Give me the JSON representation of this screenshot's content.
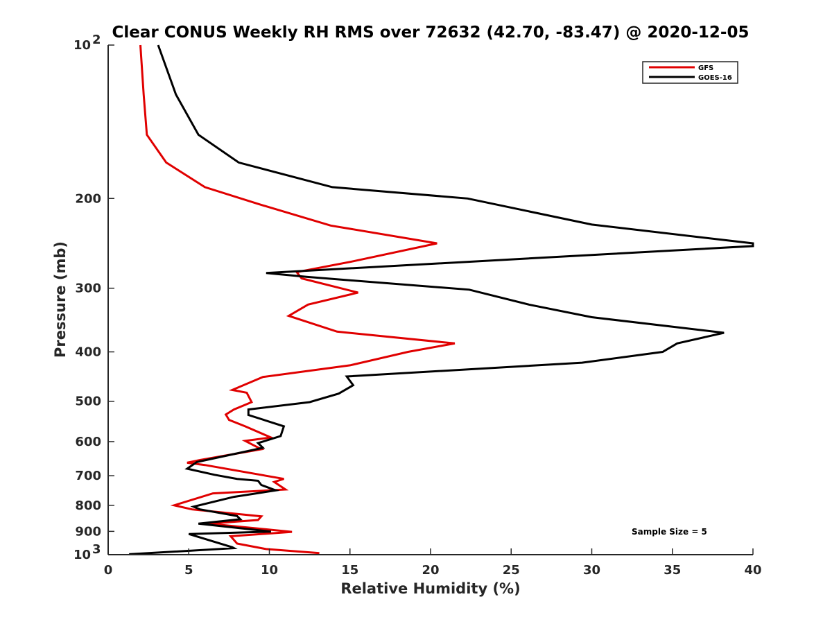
{
  "chart_data": {
    "type": "line",
    "title": "Clear CONUS Weekly RH RMS over 72632 (42.70, -83.47) @ 2020-12-05",
    "xlabel": "Relative Humidity (%)",
    "ylabel": "Pressure (mb)",
    "xlim": [
      0,
      40
    ],
    "ylim": [
      100,
      1000
    ],
    "yscale": "log",
    "y_reversed": true,
    "xticks": [
      "0",
      "5",
      "10",
      "15",
      "20",
      "25",
      "30",
      "35",
      "40"
    ],
    "xtick_values": [
      0,
      5,
      10,
      15,
      20,
      25,
      30,
      35,
      40
    ],
    "yticks": [
      {
        "value": 100,
        "label": "10",
        "sup": "2"
      },
      {
        "value": 200,
        "label": "200",
        "sup": ""
      },
      {
        "value": 300,
        "label": "300",
        "sup": ""
      },
      {
        "value": 400,
        "label": "400",
        "sup": ""
      },
      {
        "value": 500,
        "label": "500",
        "sup": ""
      },
      {
        "value": 600,
        "label": "600",
        "sup": ""
      },
      {
        "value": 700,
        "label": "700",
        "sup": ""
      },
      {
        "value": 800,
        "label": "800",
        "sup": ""
      },
      {
        "value": 900,
        "label": "900",
        "sup": ""
      },
      {
        "value": 1000,
        "label": "10",
        "sup": "3"
      }
    ],
    "legend_position": "top-right",
    "grid": false,
    "annotation": "Sample Size = 5",
    "series": [
      {
        "name": "GFS",
        "color": "#e00000",
        "x": [
          2.0,
          2.2,
          2.4,
          3.6,
          6.0,
          9.3,
          13.8,
          20.4,
          15.1,
          11.7,
          12.0,
          15.5,
          12.4,
          11.2,
          14.2,
          21.5,
          18.6,
          15.0,
          9.6,
          7.7,
          8.6,
          8.9,
          7.8,
          7.3,
          7.5,
          8.5,
          10.1,
          8.5,
          9.5,
          5.7,
          4.9,
          6.0,
          10.9,
          10.3,
          11.0,
          6.5,
          4.1,
          5.2,
          9.5,
          9.3,
          6.2,
          11.4,
          7.6,
          8.0,
          9.8,
          13.1
        ],
        "y": [
          100,
          125,
          150,
          170,
          190,
          205,
          226,
          245,
          266,
          279,
          287,
          306,
          323,
          340,
          365,
          385,
          400,
          425,
          448,
          475,
          481,
          502,
          519,
          531,
          544,
          560,
          589,
          598,
          621,
          652,
          660,
          667,
          710,
          720,
          745,
          758,
          800,
          815,
          841,
          855,
          869,
          902,
          920,
          951,
          975,
          993
        ]
      },
      {
        "name": "GOES-16",
        "color": "#000000",
        "x": [
          3.1,
          4.2,
          5.6,
          8.1,
          13.9,
          22.3,
          30.0,
          40.0,
          40.0,
          9.8,
          12.3,
          22.4,
          26.1,
          30.0,
          38.2,
          35.3,
          34.4,
          29.4,
          14.8,
          15.2,
          14.3,
          12.5,
          8.7,
          8.7,
          10.9,
          10.7,
          9.3,
          9.6,
          5.5,
          4.9,
          6.6,
          8.0,
          9.3,
          9.5,
          10.4,
          7.8,
          5.3,
          5.7,
          8.0,
          8.2,
          5.6,
          10.1,
          5.0,
          7.7,
          7.8,
          1.3
        ],
        "y": [
          100,
          125,
          150,
          170,
          190,
          200,
          225,
          245,
          248,
          280,
          285,
          302,
          323,
          342,
          367,
          385,
          400,
          420,
          447,
          465,
          483,
          502,
          519,
          532,
          560,
          585,
          604,
          617,
          658,
          678,
          697,
          710,
          716,
          730,
          748,
          770,
          805,
          815,
          840,
          852,
          869,
          901,
          911,
          967,
          971,
          998
        ]
      }
    ]
  }
}
